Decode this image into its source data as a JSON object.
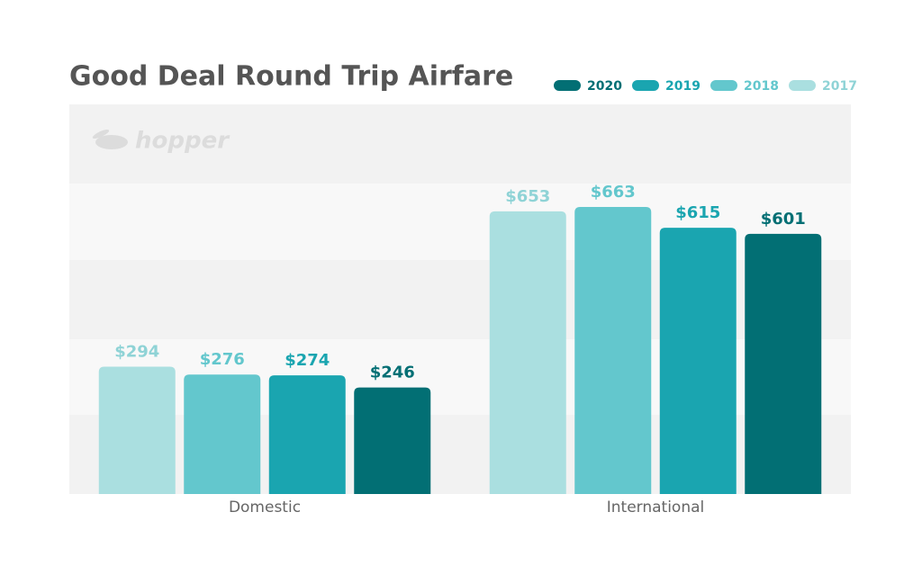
{
  "chart_data": {
    "type": "bar",
    "title": "Good Deal Round Trip Airfare",
    "watermark": "hopper",
    "categories": [
      "Domestic",
      "International"
    ],
    "series": [
      {
        "name": "2017",
        "color": "#aadfe0",
        "values": [
          294,
          653
        ],
        "value_labels": [
          "$294",
          "$653"
        ]
      },
      {
        "name": "2018",
        "color": "#63c7cd",
        "values": [
          276,
          663
        ],
        "value_labels": [
          "$276",
          "$663"
        ]
      },
      {
        "name": "2019",
        "color": "#1aa5b0",
        "values": [
          274,
          615
        ],
        "value_labels": [
          "$274",
          "$615"
        ]
      },
      {
        "name": "2020",
        "color": "#026f74",
        "values": [
          246,
          601
        ],
        "value_labels": [
          "$246",
          "$601"
        ]
      }
    ],
    "ylim": [
      0,
      900
    ],
    "legend": "top-right"
  }
}
